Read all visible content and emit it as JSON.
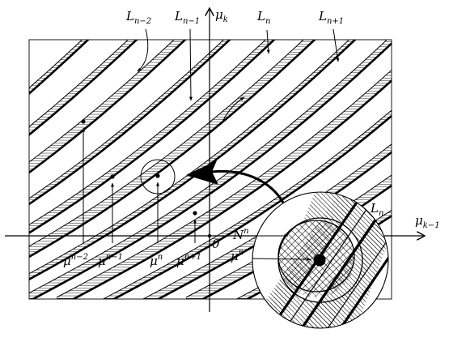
{
  "diagram": {
    "origin_label": "0",
    "axes": {
      "horizontal": {
        "base": "μ",
        "sub": "k−1"
      },
      "vertical": {
        "base": "μ",
        "sub": "k"
      }
    },
    "top_labels": [
      {
        "base": "L",
        "sub": "n−2"
      },
      {
        "base": "L",
        "sub": "n−1"
      },
      {
        "base": "L",
        "sub": "n"
      },
      {
        "base": "L",
        "sub": "n+1"
      }
    ],
    "bottom_labels": [
      {
        "base": "μ",
        "sup": "n−2"
      },
      {
        "base": "μ",
        "sup": "n−1"
      },
      {
        "base": "μ",
        "sup": "n"
      },
      {
        "base": "μ",
        "sup": "n+1"
      }
    ],
    "zoom_labels": {
      "band": {
        "base": "L",
        "sub": "n"
      },
      "neighborhood": {
        "base": "N",
        "sup": "n"
      },
      "point": {
        "base": "μ",
        "sup": "n"
      }
    },
    "colors": {
      "ink": "#000000",
      "paper": "#ffffff"
    }
  }
}
